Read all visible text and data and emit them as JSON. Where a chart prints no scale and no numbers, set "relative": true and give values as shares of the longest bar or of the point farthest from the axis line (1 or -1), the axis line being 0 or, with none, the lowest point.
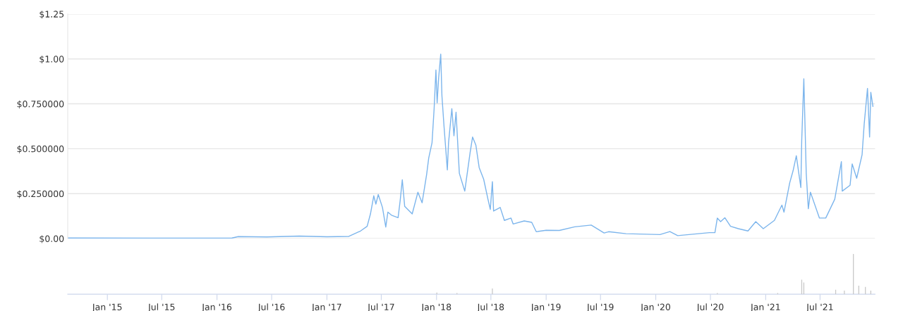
{
  "chart_data": [
    {
      "type": "line",
      "color": "#7cb5ec",
      "grid": "y",
      "tick_labels": "y",
      "x": [
        "2014-08-22",
        "2015-06-01",
        "2016-02-20",
        "2016-03-12",
        "2016-06-15",
        "2016-10-01",
        "2017-01-01",
        "2017-03-15",
        "2017-04-23",
        "2017-05-15",
        "2017-05-26",
        "2017-06-06",
        "2017-06-13",
        "2017-06-21",
        "2017-07-05",
        "2017-07-16",
        "2017-07-23",
        "2017-08-04",
        "2017-08-26",
        "2017-09-02",
        "2017-09-09",
        "2017-09-17",
        "2017-10-12",
        "2017-10-31",
        "2017-11-14",
        "2017-11-29",
        "2017-12-06",
        "2017-12-17",
        "2017-12-24",
        "2017-12-30",
        "2018-01-03",
        "2018-01-08",
        "2018-01-15",
        "2018-01-19",
        "2018-01-26",
        "2018-02-06",
        "2018-02-10",
        "2018-02-21",
        "2018-02-28",
        "2018-03-07",
        "2018-03-18",
        "2018-04-05",
        "2018-04-23",
        "2018-05-01",
        "2018-05-12",
        "2018-05-23",
        "2018-06-07",
        "2018-06-21",
        "2018-06-29",
        "2018-07-06",
        "2018-07-10",
        "2018-08-01",
        "2018-08-15",
        "2018-09-06",
        "2018-09-13",
        "2018-10-20",
        "2018-11-14",
        "2018-11-29",
        "2019-01-01",
        "2019-02-14",
        "2019-04-06",
        "2019-05-31",
        "2019-07-13",
        "2019-07-28",
        "2019-09-24",
        "2020-01-15",
        "2020-02-17",
        "2020-03-14",
        "2020-06-28",
        "2020-07-16",
        "2020-07-24",
        "2020-08-04",
        "2020-08-18",
        "2020-09-06",
        "2020-10-02",
        "2020-11-03",
        "2020-11-29",
        "2020-12-24",
        "2021-01-30",
        "2021-02-24",
        "2021-03-03",
        "2021-03-22",
        "2021-04-02",
        "2021-04-13",
        "2021-04-28",
        "2021-05-01",
        "2021-05-08",
        "2021-05-16",
        "2021-05-23",
        "2021-05-30",
        "2021-06-29",
        "2021-07-20",
        "2021-08-19",
        "2021-09-10",
        "2021-09-13",
        "2021-10-09",
        "2021-10-16",
        "2021-10-31",
        "2021-11-18",
        "2021-11-25",
        "2021-12-06",
        "2021-12-13",
        "2021-12-17",
        "2021-12-24"
      ],
      "values": [
        0.003,
        0.002,
        0.003,
        0.011,
        0.009,
        0.014,
        0.01,
        0.012,
        0.042,
        0.068,
        0.137,
        0.238,
        0.192,
        0.245,
        0.173,
        0.064,
        0.147,
        0.13,
        0.116,
        0.212,
        0.327,
        0.179,
        0.137,
        0.258,
        0.199,
        0.356,
        0.448,
        0.533,
        0.723,
        0.938,
        0.755,
        0.893,
        1.027,
        0.794,
        0.624,
        0.382,
        0.533,
        0.723,
        0.572,
        0.703,
        0.363,
        0.264,
        0.48,
        0.565,
        0.52,
        0.395,
        0.33,
        0.221,
        0.162,
        0.317,
        0.153,
        0.173,
        0.101,
        0.114,
        0.081,
        0.098,
        0.09,
        0.038,
        0.046,
        0.045,
        0.065,
        0.075,
        0.031,
        0.038,
        0.027,
        0.022,
        0.039,
        0.016,
        0.033,
        0.033,
        0.114,
        0.094,
        0.116,
        0.068,
        0.055,
        0.042,
        0.094,
        0.055,
        0.101,
        0.186,
        0.147,
        0.31,
        0.376,
        0.461,
        0.284,
        0.546,
        0.889,
        0.363,
        0.166,
        0.258,
        0.114,
        0.114,
        0.219,
        0.428,
        0.264,
        0.297,
        0.415,
        0.336,
        0.467,
        0.637,
        0.836,
        0.565,
        0.814,
        0.736
      ],
      "xlim": [
        "2014-08-22",
        "2021-12-31"
      ],
      "ylim": [
        0,
        1.25
      ],
      "yticks": [
        {
          "value": 0,
          "label": "$0.00"
        },
        {
          "value": 0.25,
          "label": "$0.250000"
        },
        {
          "value": 0.5,
          "label": "$0.500000"
        },
        {
          "value": 0.75,
          "label": "$0.750000"
        },
        {
          "value": 1,
          "label": "$1.00"
        },
        {
          "value": 1.25,
          "label": "$1.25"
        }
      ]
    },
    {
      "type": "bar",
      "color": "#c8c8c8",
      "relative": true,
      "tick_labels": "x",
      "x": [
        "2018-01-02",
        "2018-03-10",
        "2018-07-06",
        "2020-07-24",
        "2021-02-10",
        "2021-05-01",
        "2021-05-08",
        "2021-08-22",
        "2021-09-20",
        "2021-10-20",
        "2021-11-07",
        "2021-11-29",
        "2021-12-17"
      ],
      "values": [
        0.04,
        0.03,
        0.14,
        0.03,
        0.03,
        0.36,
        0.29,
        0.11,
        0.09,
        1.0,
        0.21,
        0.18,
        0.09
      ],
      "xlim": [
        "2014-08-22",
        "2021-12-31"
      ],
      "xticks": [
        {
          "value": "2015-01-01",
          "label": "Jan '15"
        },
        {
          "value": "2015-07-01",
          "label": "Jul '15"
        },
        {
          "value": "2016-01-01",
          "label": "Jan '16"
        },
        {
          "value": "2016-07-01",
          "label": "Jul '16"
        },
        {
          "value": "2017-01-01",
          "label": "Jan '17"
        },
        {
          "value": "2017-07-01",
          "label": "Jul '17"
        },
        {
          "value": "2018-01-01",
          "label": "Jan '18"
        },
        {
          "value": "2018-07-01",
          "label": "Jul '18"
        },
        {
          "value": "2019-01-01",
          "label": "Jan '19"
        },
        {
          "value": "2019-07-01",
          "label": "Jul '19"
        },
        {
          "value": "2020-01-01",
          "label": "Jan '20"
        },
        {
          "value": "2020-07-01",
          "label": "Jul '20"
        },
        {
          "value": "2021-01-01",
          "label": "Jan '21"
        },
        {
          "value": "2021-07-01",
          "label": "Jul '21"
        }
      ]
    }
  ]
}
